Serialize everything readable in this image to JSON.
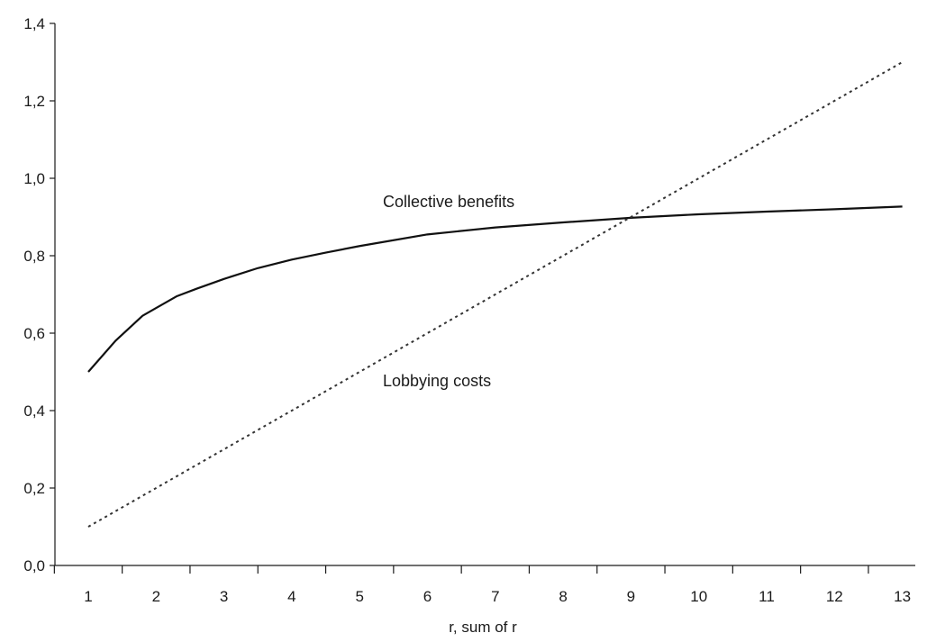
{
  "chart_data": {
    "type": "line",
    "xlabel": "r, sum of r",
    "ylabel": "",
    "x": [
      1,
      2,
      3,
      4,
      5,
      6,
      7,
      8,
      9,
      10,
      11,
      12,
      13
    ],
    "ylim": [
      0,
      1.4
    ],
    "yticks": [
      0.0,
      0.2,
      0.4,
      0.6,
      0.8,
      1.0,
      1.2,
      1.4
    ],
    "ytick_labels": [
      "0,0",
      "0,2",
      "0,4",
      "0,6",
      "0,8",
      "1,0",
      "1,2",
      "1,4"
    ],
    "xtick_labels": [
      "1",
      "2",
      "3",
      "4",
      "5",
      "6",
      "7",
      "8",
      "9",
      "10",
      "11",
      "12",
      "13"
    ],
    "grid": false,
    "series": [
      {
        "name": "Collective benefits",
        "style": "solid",
        "color": "#111111",
        "x": [
          1,
          1.4,
          1.8,
          2,
          2.3,
          2.6,
          3,
          3.5,
          4,
          4.5,
          5,
          6,
          7,
          8,
          9,
          10,
          11,
          12,
          13
        ],
        "values": [
          0.5,
          0.58,
          0.645,
          0.665,
          0.695,
          0.715,
          0.74,
          0.768,
          0.79,
          0.808,
          0.825,
          0.855,
          0.873,
          0.886,
          0.898,
          0.907,
          0.914,
          0.92,
          0.927
        ]
      },
      {
        "name": "Lobbying costs",
        "style": "dotted",
        "color": "#333333",
        "x": [
          1,
          13
        ],
        "values": [
          0.1,
          1.3
        ]
      }
    ]
  }
}
